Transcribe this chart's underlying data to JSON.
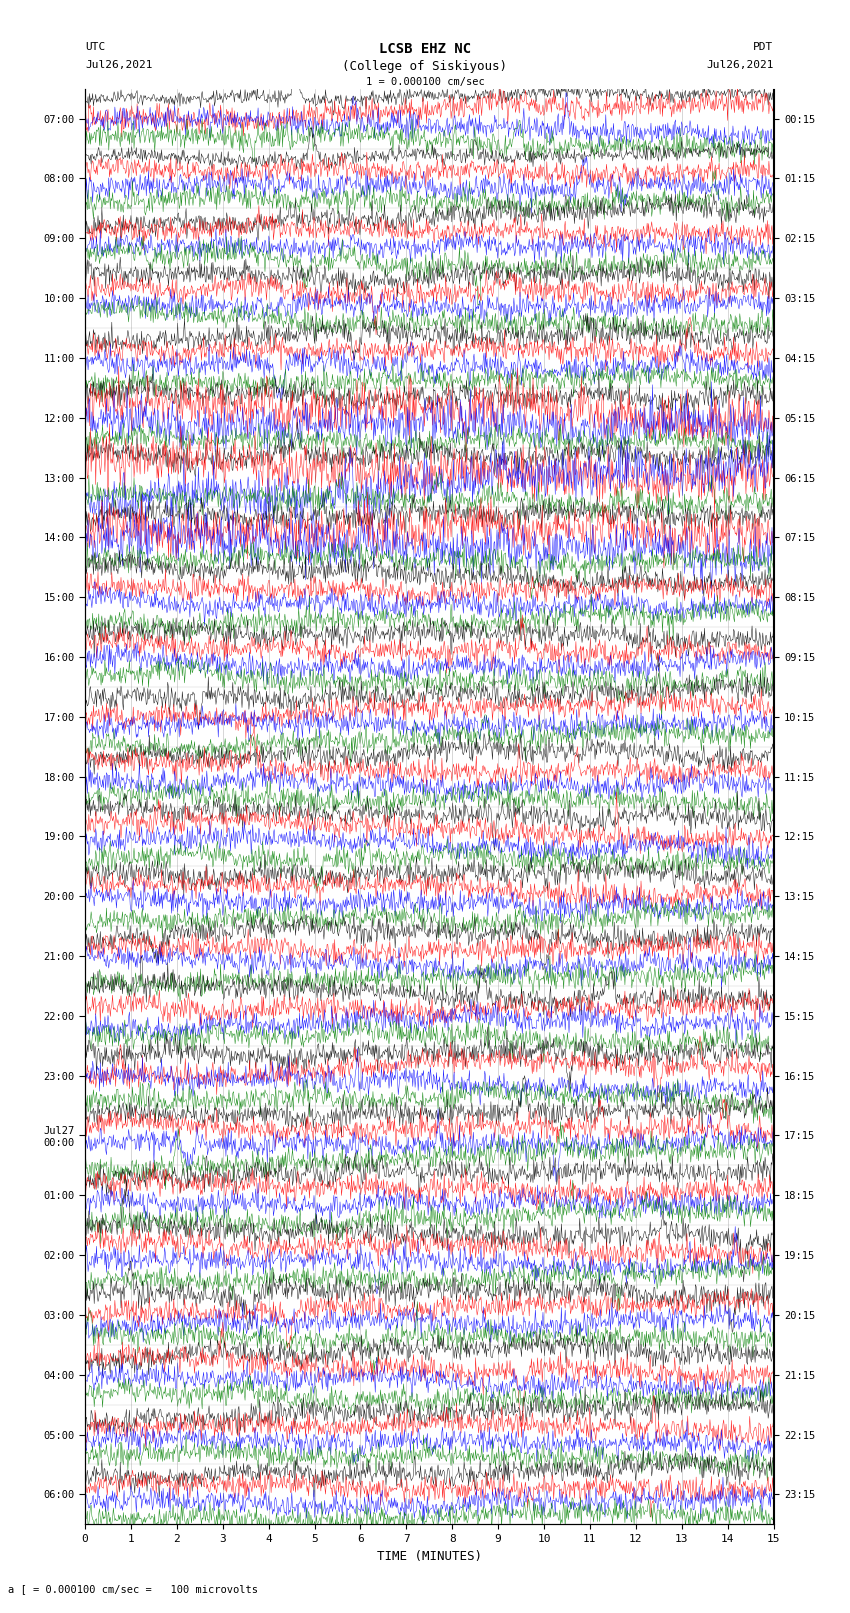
{
  "title_line1": "LCSB EHZ NC",
  "title_line2": "(College of Siskiyous)",
  "scale_label": "1 = 0.000100 cm/sec",
  "bottom_label": "a [ = 0.000100 cm/sec =   100 microvolts",
  "xlabel": "TIME (MINUTES)",
  "utc_label": "UTC",
  "utc_date": "Jul26,2021",
  "pdt_label": "PDT",
  "pdt_date": "Jul26,2021",
  "scale_bar": "1 = 0.000100 cm/sec",
  "left_times": [
    "07:00",
    "08:00",
    "09:00",
    "10:00",
    "11:00",
    "12:00",
    "13:00",
    "14:00",
    "15:00",
    "16:00",
    "17:00",
    "18:00",
    "19:00",
    "20:00",
    "21:00",
    "22:00",
    "23:00",
    "Jul27\n00:00",
    "01:00",
    "02:00",
    "03:00",
    "04:00",
    "05:00",
    "06:00"
  ],
  "right_times": [
    "00:15",
    "01:15",
    "02:15",
    "03:15",
    "04:15",
    "05:15",
    "06:15",
    "07:15",
    "08:15",
    "09:15",
    "10:15",
    "11:15",
    "12:15",
    "13:15",
    "14:15",
    "15:15",
    "16:15",
    "17:15",
    "18:15",
    "19:15",
    "20:15",
    "21:15",
    "22:15",
    "23:15"
  ],
  "colors": [
    "black",
    "red",
    "blue",
    "green"
  ],
  "n_rows": 24,
  "traces_per_row": 4,
  "bg_color": "white",
  "grid_color": "#888888",
  "fig_width": 8.5,
  "fig_height": 16.13,
  "dpi": 100,
  "xmin": 0,
  "xmax": 15,
  "xticks": [
    0,
    1,
    2,
    3,
    4,
    5,
    6,
    7,
    8,
    9,
    10,
    11,
    12,
    13,
    14,
    15
  ]
}
